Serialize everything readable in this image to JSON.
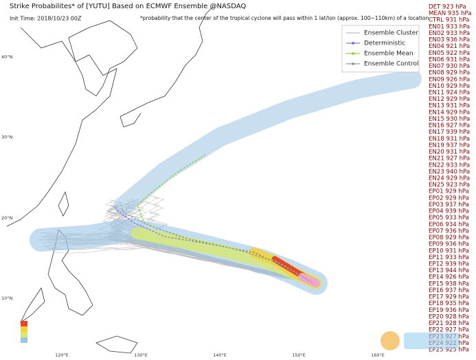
{
  "header": {
    "title": "Strike Probabilites* of [YUTU] Based on ECMWF Ensemble  @NASDAQ",
    "init_time": "Init Time: 2018/10/23 00Z",
    "note": "*probability that the center of the tropical cyclone will pass within 1 lat/lon (approx. 100~110km) of a location"
  },
  "legend": [
    "Ensemble Cluster",
    "Deterministic",
    "Ensemble Mean",
    "Ensemble Control"
  ],
  "map": {
    "lat_labels": [
      "40°N",
      "30°N",
      "20°N",
      "10°N"
    ],
    "lon_labels": [
      "120°E",
      "130°E",
      "140°E",
      "150°E",
      "160°E"
    ]
  },
  "pressures": [
    "DET 923 hPa",
    "MEAN 935 hPa",
    "CTRL 931 hPa",
    "EN01 933 hPa",
    "EN02 933 hPa",
    "EN03 936 hPa",
    "EN04 921 hPa",
    "EN05 922 hPa",
    "EN06 931 hPa",
    "EN07 930 hPa",
    "EN08 929 hPa",
    "EN09 926 hPa",
    "EN10 929 hPa",
    "EN11 924 hPa",
    "EN12 929 hPa",
    "EN13 931 hPa",
    "EN14 929 hPa",
    "EN15 930 hPa",
    "EN16 927 hPa",
    "EN17 939 hPa",
    "EN18 931 hPa",
    "EN19 937 hPa",
    "EN20 931 hPa",
    "EN21 927 hPa",
    "EN22 933 hPa",
    "EN23 940 hPa",
    "EN24 929 hPa",
    "EN25 923 hPa",
    "EP01 929 hPa",
    "EP02 929 hPa",
    "EP03 937 hPa",
    "EP04 939 hPa",
    "EP05 933 hPa",
    "EP06 934 hPa",
    "EP07 936 hPa",
    "EP08 929 hPa",
    "EP09 936 hPa",
    "EP10 931 hPa",
    "EP11 933 hPa",
    "EP12 939 hPa",
    "EP13 944 hPa",
    "EP14 926 hPa",
    "EP15 938 hPa",
    "EP16 937 hPa",
    "EP17 929 hPa",
    "EP18 935 hPa",
    "EP19 936 hPa",
    "EP20 928 hPa",
    "EP21 928 hPa",
    "EP22 927 hPa",
    "EP23 927 hPa",
    "EP24 922 hPa",
    "EP25 925 hPa"
  ]
}
